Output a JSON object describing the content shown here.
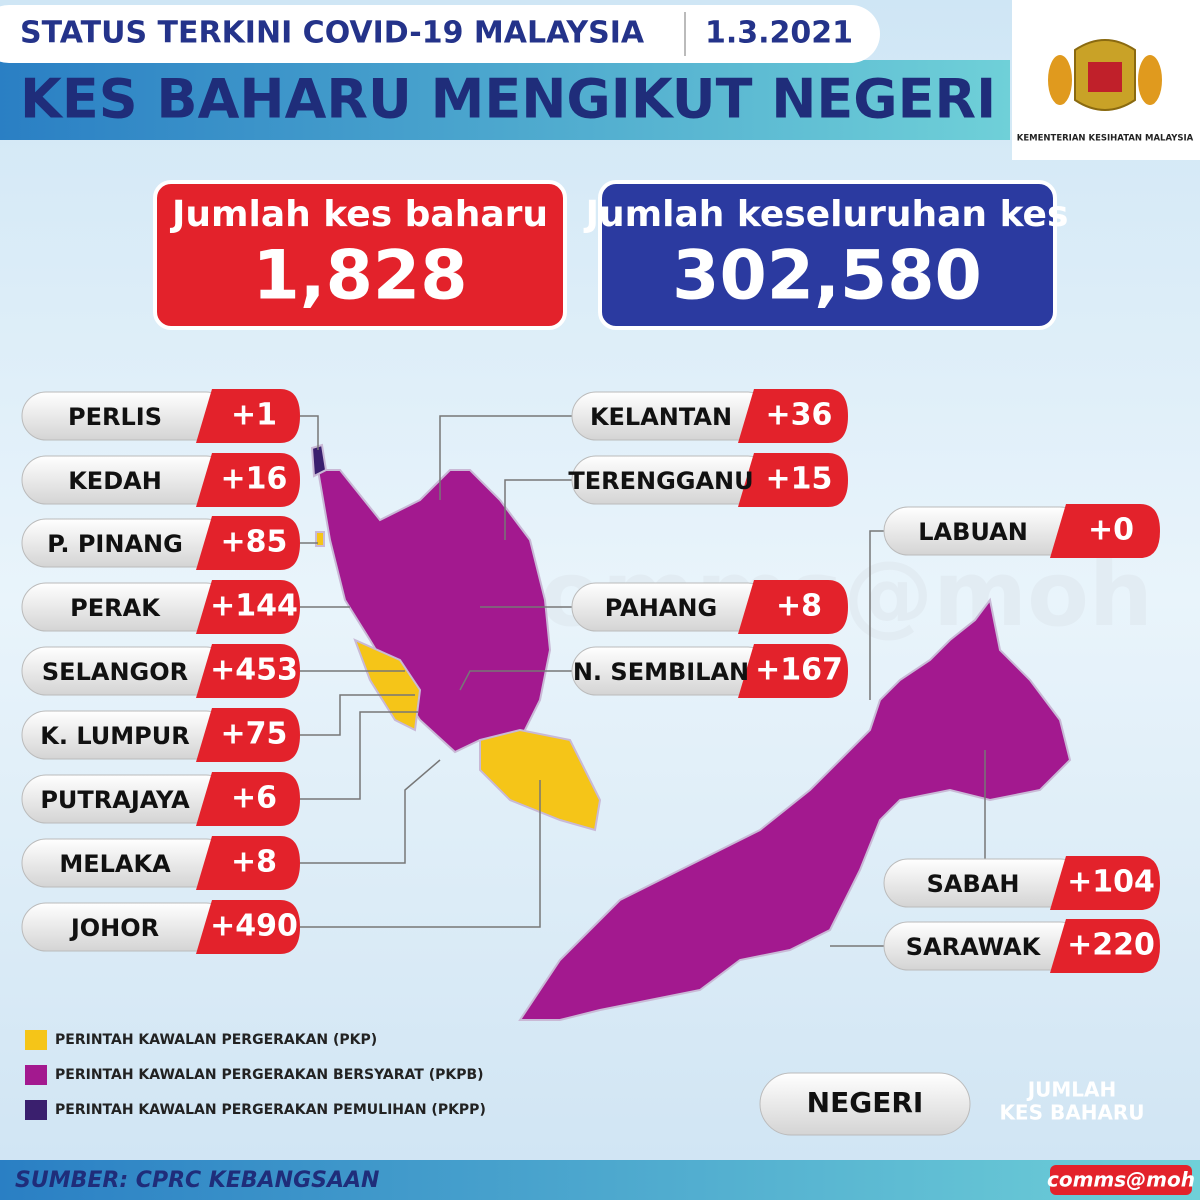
{
  "header": {
    "status": "STATUS TERKINI COVID-19 MALAYSIA",
    "date": "1.3.2021",
    "title": "KES BAHARU MENGIKUT NEGERI",
    "logo_text": "KEMENTERIAN KESIHATAN MALAYSIA"
  },
  "totals": {
    "new_label": "Jumlah kes baharu",
    "new_value": "1,828",
    "cumulative_label": "Jumlah keseluruhan kes",
    "cumulative_value": "302,580"
  },
  "states_left": [
    {
      "name": "PERLIS",
      "value": "+1"
    },
    {
      "name": "KEDAH",
      "value": "+16"
    },
    {
      "name": "P. PINANG",
      "value": "+85"
    },
    {
      "name": "PERAK",
      "value": "+144"
    },
    {
      "name": "SELANGOR",
      "value": "+453"
    },
    {
      "name": "K. LUMPUR",
      "value": "+75"
    },
    {
      "name": "PUTRAJAYA",
      "value": "+6"
    },
    {
      "name": "MELAKA",
      "value": "+8"
    },
    {
      "name": "JOHOR",
      "value": "+490"
    }
  ],
  "states_right": [
    {
      "name": "KELANTAN",
      "value": "+36"
    },
    {
      "name": "TERENGGANU",
      "value": "+15"
    },
    {
      "name": "PAHANG",
      "value": "+8"
    },
    {
      "name": "N. SEMBILAN",
      "value": "+167"
    },
    {
      "name": "LABUAN",
      "value": "+0"
    },
    {
      "name": "SABAH",
      "value": "+104"
    },
    {
      "name": "SARAWAK",
      "value": "+220"
    }
  ],
  "legend": [
    {
      "label": "PERINTAH KAWALAN PERGERAKAN (PKP)",
      "color": "#f5c518"
    },
    {
      "label": "PERINTAH KAWALAN PERGERAKAN BERSYARAT (PKPB)",
      "color": "#a3198f"
    },
    {
      "label": "PERINTAH KAWALAN PERGERAKAN PEMULIHAN (PKPP)",
      "color": "#3a1f6e"
    }
  ],
  "key": {
    "name": "NEGERI",
    "value_lines": [
      "JUMLAH",
      "KES BAHARU"
    ]
  },
  "footer": {
    "source": "SUMBER: CPRC KEBANGSAAN",
    "credit": "comms@moh"
  }
}
